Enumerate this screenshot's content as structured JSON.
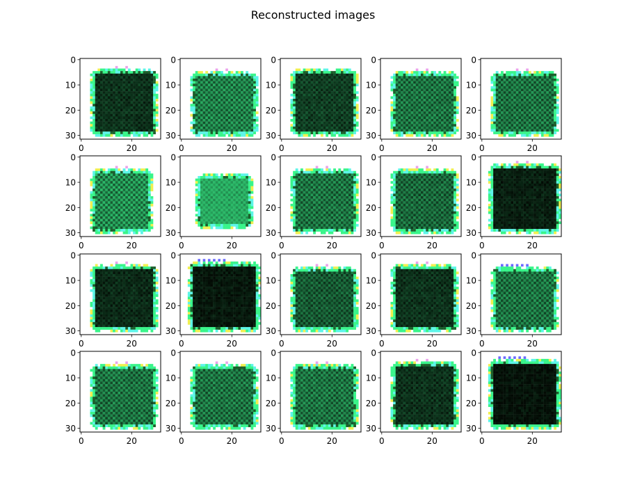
{
  "figure": {
    "title": "Reconstructed images"
  },
  "chart_data": {
    "type": "heatmap",
    "title": "Reconstructed images",
    "grid_layout": {
      "rows": 4,
      "cols": 5
    },
    "image_size": 32,
    "x_ticks": [
      0,
      20
    ],
    "y_ticks": [
      0,
      10,
      20,
      30
    ],
    "xlim": [
      -0.5,
      31.5
    ],
    "ylim": [
      31.5,
      -0.5
    ],
    "grid": false,
    "colors": {
      "dark": "#030a04",
      "green": "#1b5e2a",
      "edge_cyan": "#5cf5e8",
      "edge_green": "#38f58a",
      "edge_yellow": "#f0f050",
      "edge_blue": "#5050ff",
      "edge_magenta": "#e890e8"
    },
    "panels": [
      {
        "row": 0,
        "col": 0,
        "x0": 4,
        "x1": 30,
        "y0": 4,
        "y1": 30,
        "darkness": 0.85,
        "top_accent": "magenta"
      },
      {
        "row": 0,
        "col": 1,
        "x0": 4,
        "x1": 30,
        "y0": 5,
        "y1": 30,
        "darkness": 0.55,
        "top_accent": "magenta"
      },
      {
        "row": 0,
        "col": 2,
        "x0": 4,
        "x1": 30,
        "y0": 4,
        "y1": 30,
        "darkness": 0.8,
        "top_accent": "none"
      },
      {
        "row": 0,
        "col": 3,
        "x0": 4,
        "x1": 30,
        "y0": 5,
        "y1": 30,
        "darkness": 0.6,
        "top_accent": "magenta"
      },
      {
        "row": 0,
        "col": 4,
        "x0": 4,
        "x1": 30,
        "y0": 5,
        "y1": 30,
        "darkness": 0.6,
        "top_accent": "magenta"
      },
      {
        "row": 1,
        "col": 0,
        "x0": 4,
        "x1": 28,
        "y0": 5,
        "y1": 30,
        "darkness": 0.5,
        "top_accent": "magenta"
      },
      {
        "row": 1,
        "col": 1,
        "x0": 6,
        "x1": 28,
        "y0": 7,
        "y1": 28,
        "darkness": 0.2,
        "top_accent": "none"
      },
      {
        "row": 1,
        "col": 2,
        "x0": 4,
        "x1": 30,
        "y0": 5,
        "y1": 30,
        "darkness": 0.6,
        "top_accent": "magenta"
      },
      {
        "row": 1,
        "col": 3,
        "x0": 4,
        "x1": 30,
        "y0": 5,
        "y1": 30,
        "darkness": 0.65,
        "top_accent": "magenta"
      },
      {
        "row": 1,
        "col": 4,
        "x0": 3,
        "x1": 31,
        "y0": 3,
        "y1": 30,
        "darkness": 0.92,
        "top_accent": "magenta"
      },
      {
        "row": 2,
        "col": 0,
        "x0": 4,
        "x1": 30,
        "y0": 4,
        "y1": 30,
        "darkness": 0.88,
        "top_accent": "magenta"
      },
      {
        "row": 2,
        "col": 1,
        "x0": 3,
        "x1": 31,
        "y0": 3,
        "y1": 30,
        "darkness": 0.95,
        "top_accent": "blue"
      },
      {
        "row": 2,
        "col": 2,
        "x0": 4,
        "x1": 30,
        "y0": 5,
        "y1": 30,
        "darkness": 0.7,
        "top_accent": "magenta"
      },
      {
        "row": 2,
        "col": 3,
        "x0": 4,
        "x1": 30,
        "y0": 4,
        "y1": 30,
        "darkness": 0.85,
        "top_accent": "magenta"
      },
      {
        "row": 2,
        "col": 4,
        "x0": 4,
        "x1": 30,
        "y0": 5,
        "y1": 30,
        "darkness": 0.6,
        "top_accent": "blue"
      },
      {
        "row": 3,
        "col": 0,
        "x0": 4,
        "x1": 30,
        "y0": 5,
        "y1": 30,
        "darkness": 0.6,
        "top_accent": "magenta"
      },
      {
        "row": 3,
        "col": 1,
        "x0": 4,
        "x1": 30,
        "y0": 5,
        "y1": 30,
        "darkness": 0.6,
        "top_accent": "magenta"
      },
      {
        "row": 3,
        "col": 2,
        "x0": 4,
        "x1": 30,
        "y0": 5,
        "y1": 30,
        "darkness": 0.6,
        "top_accent": "magenta"
      },
      {
        "row": 3,
        "col": 3,
        "x0": 4,
        "x1": 30,
        "y0": 4,
        "y1": 30,
        "darkness": 0.85,
        "top_accent": "magenta"
      },
      {
        "row": 3,
        "col": 4,
        "x0": 3,
        "x1": 31,
        "y0": 3,
        "y1": 30,
        "darkness": 0.97,
        "top_accent": "blue"
      }
    ]
  }
}
